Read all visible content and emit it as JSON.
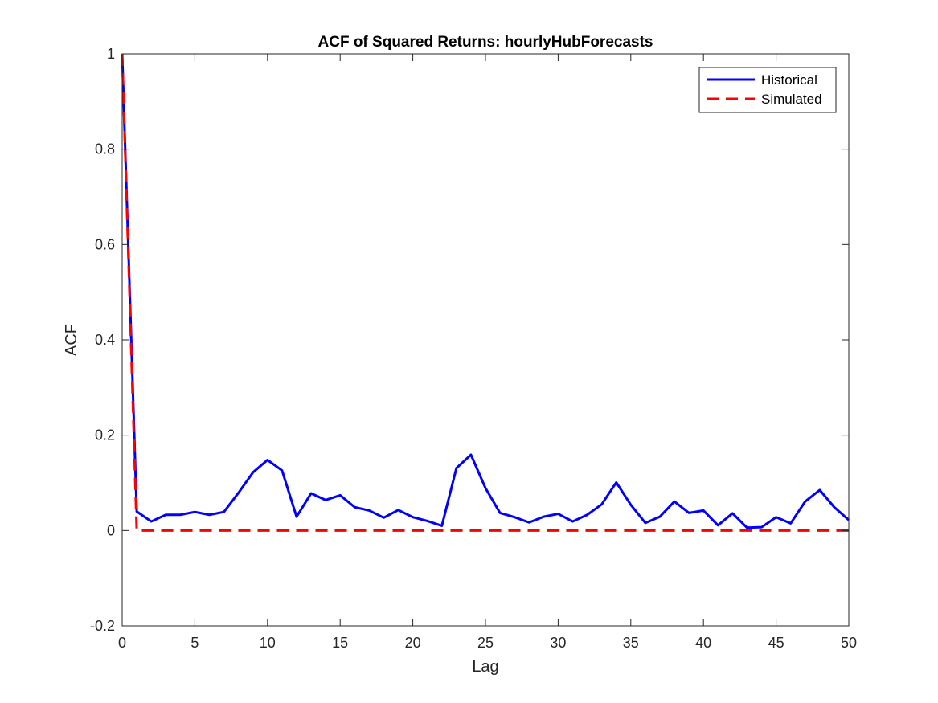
{
  "chart_data": {
    "type": "line",
    "title": "ACF of Squared Returns: hourlyHubForecasts",
    "xlabel": "Lag",
    "ylabel": "ACF",
    "xlim": [
      0,
      50
    ],
    "ylim": [
      -0.2,
      1
    ],
    "xticks": [
      0,
      5,
      10,
      15,
      20,
      25,
      30,
      35,
      40,
      45,
      50
    ],
    "yticks": [
      -0.2,
      0,
      0.2,
      0.4,
      0.6,
      0.8,
      1
    ],
    "xtick_labels": [
      "0",
      "5",
      "10",
      "15",
      "20",
      "25",
      "30",
      "35",
      "40",
      "45",
      "50"
    ],
    "ytick_labels": [
      "-0.2",
      "0",
      "0.2",
      "0.4",
      "0.6",
      "0.8",
      "1"
    ],
    "grid": false,
    "legend_position": "top-right",
    "x": [
      0,
      1,
      2,
      3,
      4,
      5,
      6,
      7,
      8,
      9,
      10,
      11,
      12,
      13,
      14,
      15,
      16,
      17,
      18,
      19,
      20,
      21,
      22,
      23,
      24,
      25,
      26,
      27,
      28,
      29,
      30,
      31,
      32,
      33,
      34,
      35,
      36,
      37,
      38,
      39,
      40,
      41,
      42,
      43,
      44,
      45,
      46,
      47,
      48,
      49,
      50
    ],
    "series": [
      {
        "name": "Historical",
        "color": "#0000ff",
        "style": "solid",
        "values": [
          1.0,
          0.04,
          0.019,
          0.033,
          0.033,
          0.039,
          0.033,
          0.039,
          0.079,
          0.122,
          0.148,
          0.126,
          0.029,
          0.078,
          0.064,
          0.074,
          0.049,
          0.042,
          0.027,
          0.043,
          0.028,
          0.02,
          0.01,
          0.131,
          0.159,
          0.089,
          0.037,
          0.028,
          0.017,
          0.029,
          0.035,
          0.019,
          0.033,
          0.055,
          0.101,
          0.054,
          0.016,
          0.029,
          0.061,
          0.037,
          0.042,
          0.011,
          0.036,
          0.006,
          0.007,
          0.028,
          0.015,
          0.061,
          0.085,
          0.049,
          0.022
        ]
      },
      {
        "name": "Simulated",
        "color": "#ff0000",
        "style": "dashed",
        "values": [
          1.0,
          0,
          0,
          0,
          0,
          0,
          0,
          0,
          0,
          0,
          0,
          0,
          0,
          0,
          0,
          0,
          0,
          0,
          0,
          0,
          0,
          0,
          0,
          0,
          0,
          0,
          0,
          0,
          0,
          0,
          0,
          0,
          0,
          0,
          0,
          0,
          0,
          0,
          0,
          0,
          0,
          0,
          0,
          0,
          0,
          0,
          0,
          0,
          0,
          0,
          0
        ]
      }
    ]
  }
}
